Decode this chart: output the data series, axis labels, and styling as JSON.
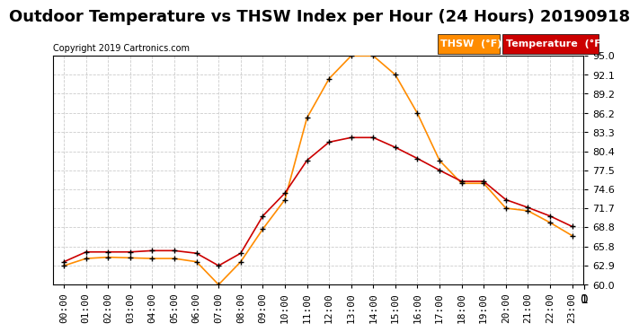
{
  "title": "Outdoor Temperature vs THSW Index per Hour (24 Hours) 20190918",
  "copyright": "Copyright 2019 Cartronics.com",
  "ylim": [
    60.0,
    95.0
  ],
  "yticks": [
    60.0,
    62.9,
    65.8,
    68.8,
    71.7,
    74.6,
    77.5,
    80.4,
    83.3,
    86.2,
    89.2,
    92.1,
    95.0
  ],
  "hours": [
    "00:00",
    "01:00",
    "02:00",
    "03:00",
    "04:00",
    "05:00",
    "06:00",
    "07:00",
    "08:00",
    "09:00",
    "10:00",
    "11:00",
    "12:00",
    "13:00",
    "14:00",
    "15:00",
    "16:00",
    "17:00",
    "18:00",
    "19:00",
    "20:00",
    "21:00",
    "22:00",
    "23:00"
  ],
  "thsw": [
    62.9,
    64.0,
    64.2,
    64.1,
    64.0,
    64.0,
    63.5,
    60.0,
    63.5,
    68.5,
    73.0,
    85.5,
    91.5,
    95.0,
    95.0,
    92.1,
    86.2,
    79.0,
    75.5,
    75.5,
    71.7,
    71.3,
    69.5,
    67.5
  ],
  "temp": [
    63.5,
    65.0,
    65.0,
    65.0,
    65.2,
    65.2,
    64.8,
    62.9,
    64.8,
    70.5,
    74.0,
    79.0,
    81.8,
    82.5,
    82.5,
    81.0,
    79.3,
    77.5,
    75.8,
    75.8,
    73.0,
    71.8,
    70.5,
    68.9
  ],
  "thsw_color": "#FF8C00",
  "temp_color": "#CC0000",
  "marker_color": "#000000",
  "legend_thsw_bg": "#FF8C00",
  "legend_temp_bg": "#CC0000",
  "background_color": "#ffffff",
  "grid_color": "#cccccc",
  "title_fontsize": 13,
  "axis_fontsize": 8,
  "copyright_fontsize": 7,
  "legend_fontsize": 8
}
